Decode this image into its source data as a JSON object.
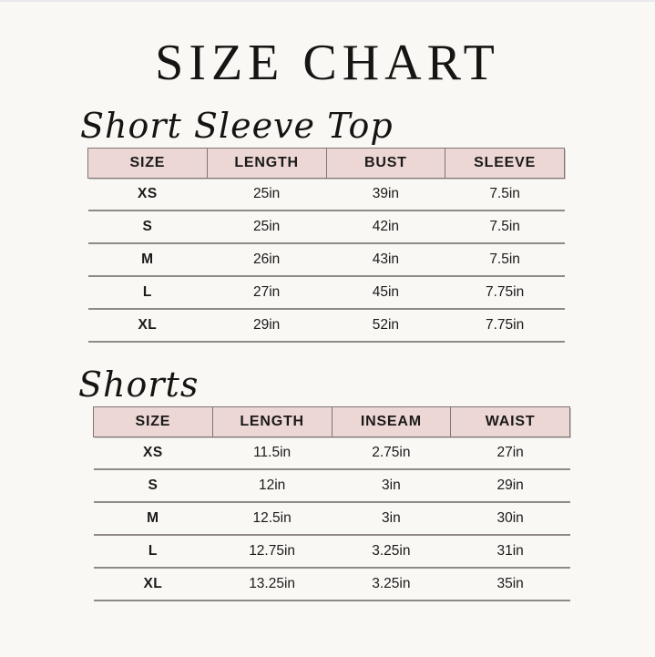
{
  "page": {
    "title": "SIZE CHART",
    "background_color": "#faf8f5",
    "header_bg_color": "#ecd7d4",
    "header_border_color": "#7d7573",
    "row_line_color": "#8f8a86",
    "text_color": "#1b1a19"
  },
  "sections": [
    {
      "heading": "Short Sleeve Top",
      "columns": [
        "SIZE",
        "LENGTH",
        "BUST",
        "SLEEVE"
      ],
      "rows": [
        [
          "XS",
          "25in",
          "39in",
          "7.5in"
        ],
        [
          "S",
          "25in",
          "42in",
          "7.5in"
        ],
        [
          "M",
          "26in",
          "43in",
          "7.5in"
        ],
        [
          "L",
          "27in",
          "45in",
          "7.75in"
        ],
        [
          "XL",
          "29in",
          "52in",
          "7.75in"
        ]
      ]
    },
    {
      "heading": "Shorts",
      "columns": [
        "SIZE",
        "LENGTH",
        "INSEAM",
        "WAIST"
      ],
      "rows": [
        [
          "XS",
          "11.5in",
          "2.75in",
          "27in"
        ],
        [
          "S",
          "12in",
          "3in",
          "29in"
        ],
        [
          "M",
          "12.5in",
          "3in",
          "30in"
        ],
        [
          "L",
          "12.75in",
          "3.25in",
          "31in"
        ],
        [
          "XL",
          "13.25in",
          "3.25in",
          "35in"
        ]
      ]
    }
  ]
}
